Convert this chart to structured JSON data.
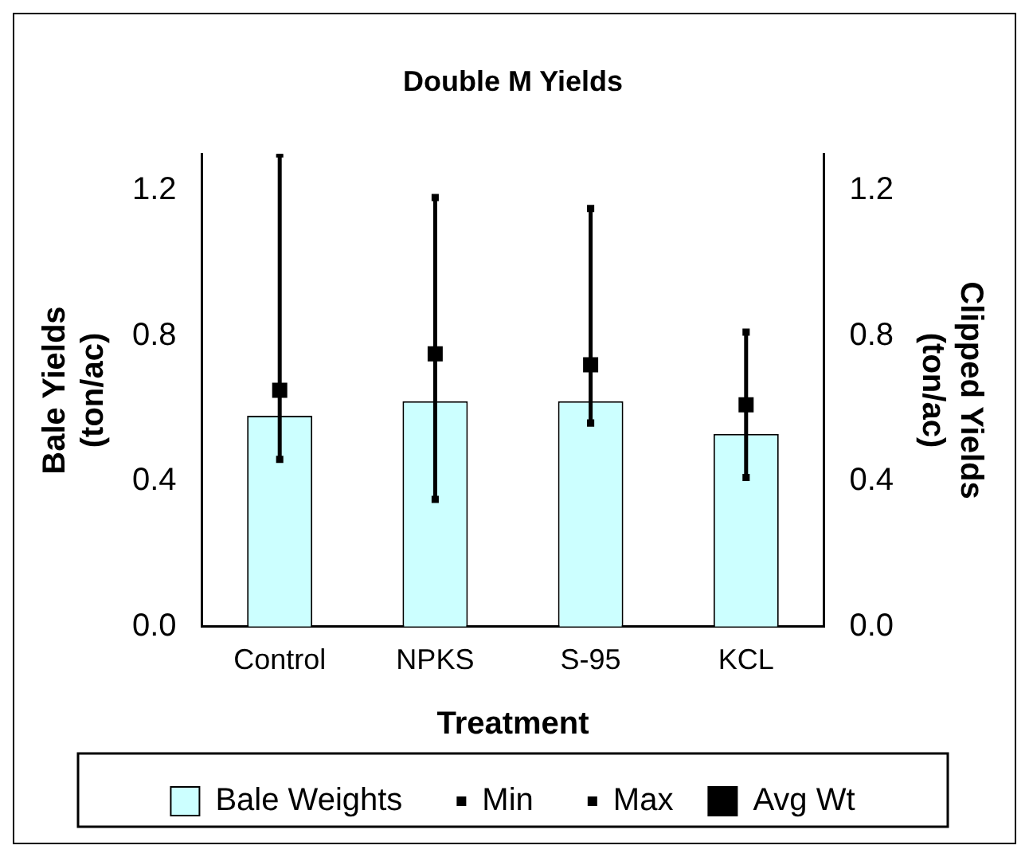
{
  "chart_data": {
    "type": "bar",
    "title": "Double M Yields",
    "xlabel": "Treatment",
    "ylabel": "Bale Yields\n(ton/ac)",
    "y2label": "Clipped Yields\n(ton/ac)",
    "categories": [
      "Control",
      "NPKS",
      "S-95",
      "KCL"
    ],
    "series": [
      {
        "name": "Bale Weights",
        "color": "#ccffff",
        "values": [
          0.58,
          0.62,
          0.62,
          0.53
        ]
      },
      {
        "name": "Min",
        "type": "scatter",
        "marker": "square",
        "color": "#000000",
        "values": [
          0.46,
          0.35,
          0.56,
          0.41
        ]
      },
      {
        "name": "Max",
        "type": "scatter",
        "marker": "square",
        "color": "#000000",
        "values": [
          1.3,
          1.18,
          1.15,
          0.81
        ]
      },
      {
        "name": "Avg Wt",
        "type": "scatter",
        "marker": "square",
        "axis": "y2",
        "color": "#000000",
        "values": [
          0.65,
          0.75,
          0.72,
          0.61
        ]
      }
    ],
    "ylim": [
      0,
      1.3
    ],
    "yticks": [
      {
        "value": 0,
        "label": "0.0"
      },
      {
        "value": 0.4,
        "label": "0.4"
      },
      {
        "value": 0.8,
        "label": "0.8"
      },
      {
        "value": 1.2,
        "label": "1.2"
      }
    ],
    "y2lim": [
      0,
      1.3
    ],
    "y2ticks": [
      {
        "value": 0,
        "label": "0.0"
      },
      {
        "value": 0.4,
        "label": "0.4"
      },
      {
        "value": 0.8,
        "label": "0.8"
      },
      {
        "value": 1.2,
        "label": "1.2"
      }
    ],
    "grid": false,
    "legend": "bottom"
  }
}
